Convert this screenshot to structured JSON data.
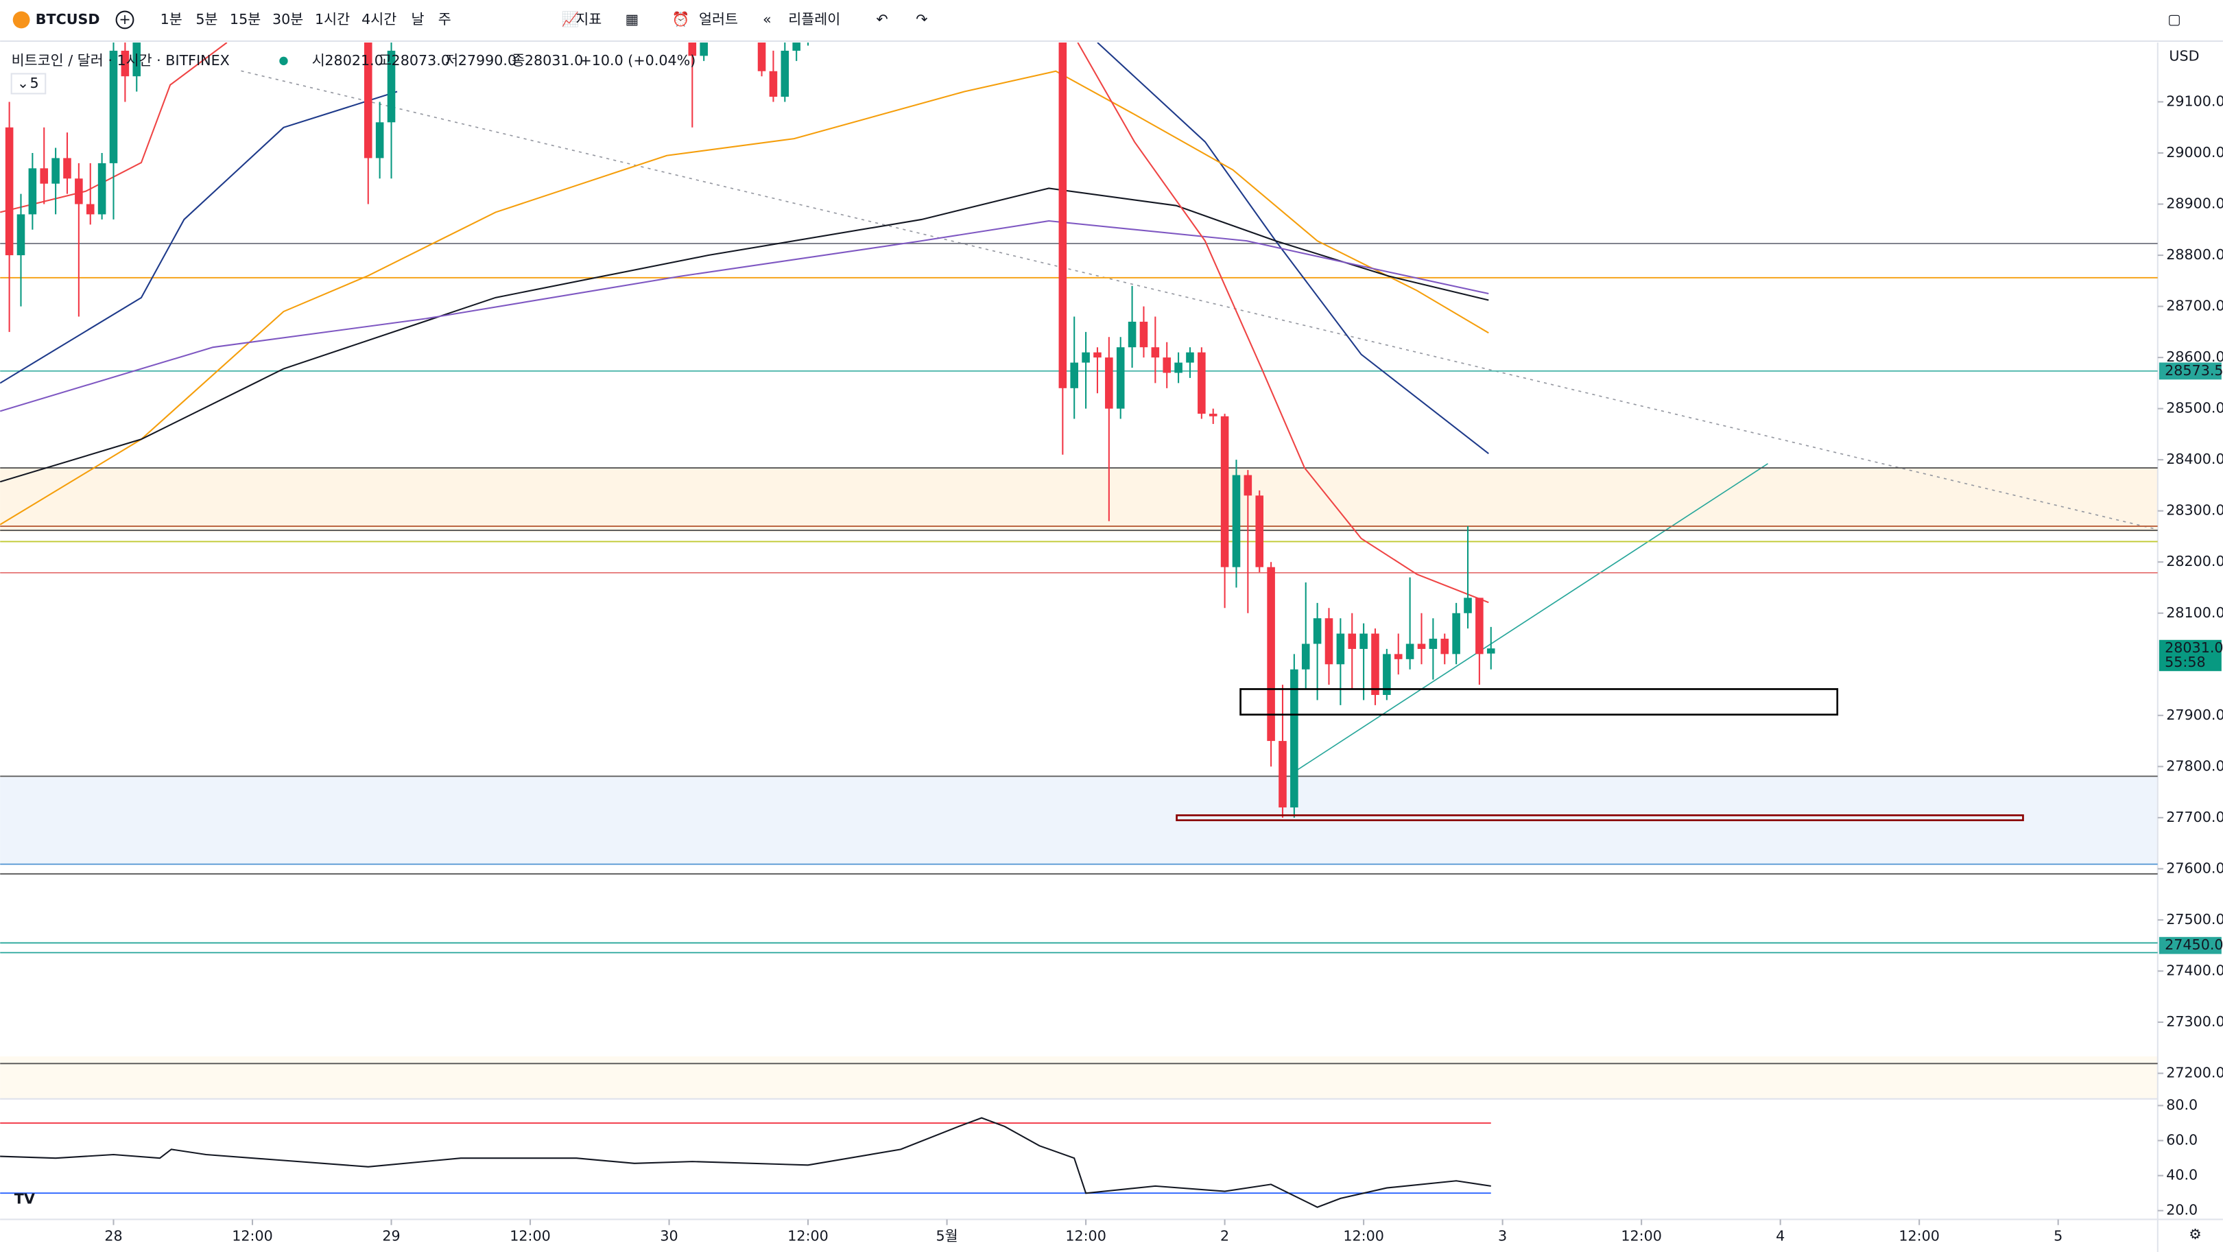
{
  "toolbar": {
    "symbol": "BTCUSD",
    "intervals": [
      "1분",
      "5분",
      "15분",
      "30분",
      "1시간",
      "4시간",
      "날",
      "주"
    ],
    "indicators": "지표",
    "alert": "얼러트",
    "replay": "리플레이"
  },
  "legend": {
    "title": "비트코인 / 달러 · 1시간 · BITFINEX",
    "o_label": "시",
    "o": "28021.0",
    "h_label": "고",
    "h": "28073.0",
    "l_label": "저",
    "l": "27990.0",
    "c_label": "종",
    "c": "28031.0",
    "change": "+10.0 (+0.04%)",
    "volume_len": "5"
  },
  "chart_data": {
    "type": "candlestick",
    "currency": "USD",
    "x": [
      -9,
      -8,
      -7,
      -6,
      -5,
      -4,
      -3,
      -2,
      -1,
      0,
      1,
      2,
      22,
      23,
      24,
      50,
      51,
      56,
      57,
      58,
      59,
      60,
      82,
      83,
      84,
      85,
      86,
      87,
      88,
      89,
      90,
      91,
      92,
      93,
      94,
      95,
      96,
      97,
      98,
      99,
      100,
      101,
      102,
      103,
      104,
      105,
      106,
      107,
      108,
      109,
      110,
      111,
      112,
      113,
      114,
      115,
      116,
      117,
      118,
      119
    ],
    "open": [
      29050,
      28800,
      28880,
      28970,
      28940,
      28990,
      28950,
      28900,
      28880,
      28980,
      29200,
      29150,
      29230,
      28990,
      29060,
      29240,
      29190,
      29230,
      29160,
      29110,
      29200,
      29230,
      29230,
      28540,
      28590,
      28610,
      28600,
      28500,
      28620,
      28670,
      28620,
      28600,
      28570,
      28590,
      28610,
      28490,
      28485,
      28190,
      28370,
      28330,
      28190,
      27850,
      27720,
      27990,
      28040,
      28090,
      28000,
      28060,
      28030,
      28060,
      27940,
      28020,
      28010,
      28040,
      28030,
      28050,
      28020,
      28100,
      28130,
      28021
    ],
    "high": [
      29100,
      28920,
      29000,
      29050,
      29010,
      29040,
      28980,
      28980,
      29000,
      29240,
      29250,
      29250,
      29250,
      29100,
      29240,
      29260,
      29240,
      29250,
      29200,
      29220,
      29240,
      29250,
      29250,
      28680,
      28650,
      28620,
      28640,
      28640,
      28740,
      28700,
      28680,
      28630,
      28610,
      28620,
      28620,
      28500,
      28490,
      28400,
      28380,
      28340,
      28200,
      27960,
      28020,
      28160,
      28120,
      28110,
      28090,
      28100,
      28080,
      28070,
      28030,
      28060,
      28170,
      28100,
      28090,
      28060,
      28120,
      28270,
      28130,
      28073
    ],
    "low": [
      28650,
      28700,
      28850,
      28900,
      28880,
      28920,
      28680,
      28860,
      28870,
      28870,
      29100,
      29120,
      28900,
      28950,
      28950,
      29050,
      29180,
      29150,
      29100,
      29100,
      29180,
      29210,
      28410,
      28480,
      28500,
      28530,
      28280,
      28480,
      28580,
      28600,
      28550,
      28540,
      28550,
      28560,
      28480,
      28470,
      28110,
      28150,
      28100,
      28180,
      27800,
      27700,
      27700,
      27950,
      27930,
      27960,
      27920,
      27950,
      27930,
      27920,
      27930,
      27980,
      27990,
      28000,
      27970,
      28000,
      28000,
      28070,
      27960,
      27990
    ],
    "close": [
      28800,
      28880,
      28970,
      28940,
      28990,
      28950,
      28900,
      28880,
      28980,
      29200,
      29150,
      29240,
      28990,
      29060,
      29200,
      29190,
      29230,
      29160,
      29110,
      29200,
      29230,
      29240,
      28540,
      28590,
      28610,
      28600,
      28500,
      28620,
      28670,
      28620,
      28600,
      28570,
      28590,
      28610,
      28490,
      28485,
      28190,
      28370,
      28330,
      28190,
      27850,
      27720,
      27990,
      28040,
      28090,
      28000,
      28060,
      28030,
      28060,
      27940,
      28020,
      28010,
      28040,
      28030,
      28050,
      28020,
      28100,
      28130,
      28020,
      28031
    ],
    "up_color": "#089981",
    "down_color": "#f23645",
    "lines": [
      {
        "color": "#1e3a8a",
        "x": [
          -9.8,
          2.4,
          6.1,
          14.7,
          24.5,
          40,
          85,
          94.3,
          100.4,
          107.8,
          118.8
        ],
        "values": [
          28550,
          28717,
          28870,
          29050,
          29120,
          null,
          29216,
          29022,
          28828,
          28606,
          28412
        ]
      },
      {
        "color": "#f59e0b",
        "x": [
          -9.8,
          2.4,
          14.7,
          22,
          33,
          47.8,
          58.8,
          73.5,
          81.4,
          88,
          96.7,
          104,
          112.6,
          118.8
        ],
        "values": [
          28273,
          28440,
          28690,
          28760,
          28884,
          28995,
          29028,
          29120,
          29160,
          29078,
          28967,
          28828,
          28731,
          28648
        ]
      },
      {
        "color": "#131722",
        "x": [
          -9.8,
          2.4,
          14.7,
          33,
          51.4,
          69.8,
          80.8,
          91.8,
          100.4,
          110.2,
          118.8
        ],
        "values": [
          28357,
          28440,
          28578,
          28717,
          28800,
          28870,
          28931,
          28897,
          28828,
          28759,
          28712
        ]
      },
      {
        "color": "#7e57c2",
        "x": [
          -9.8,
          8.6,
          27,
          49,
          69.8,
          80.8,
          97.9,
          110.2,
          118.8
        ],
        "values": [
          28495,
          28620,
          28676,
          28759,
          28828,
          28867,
          28828,
          28767,
          28725
        ]
      },
      {
        "color": "#ef4444",
        "x": [
          -9.8,
          -2.4,
          2.4,
          4.9,
          9.8,
          40,
          83.3,
          88.2,
          94.3,
          99.2,
          102.9,
          107.8,
          112.6,
          118.8
        ],
        "values": [
          28884,
          28925,
          28981,
          29133,
          29216,
          null,
          29216,
          29022,
          28828,
          28578,
          28384,
          28246,
          28176,
          28121
        ]
      }
    ],
    "levels": [
      {
        "value": 28823,
        "color": "#787b86"
      },
      {
        "value": 28756,
        "color": "#f59e0b"
      },
      {
        "value": 28573.5,
        "color": "#4db6ac"
      },
      {
        "value": 28384,
        "color": "#555"
      },
      {
        "value": 28270,
        "color": "#b85c38"
      },
      {
        "value": 28262,
        "color": "#555"
      },
      {
        "value": 28240,
        "color": "#c0ca33"
      },
      {
        "value": 28179,
        "color": "#e57373"
      },
      {
        "value": 27781,
        "color": "#555"
      },
      {
        "value": 27609,
        "color": "#5b9bd5"
      },
      {
        "value": 27590,
        "color": "#555"
      },
      {
        "value": 27455,
        "color": "#26a69a"
      },
      {
        "value": 27436,
        "color": "#26a69a"
      },
      {
        "value": 27219,
        "color": "#555"
      }
    ],
    "badges": [
      {
        "value": 28573.5,
        "label": "28573.5",
        "color": "#26a69a"
      },
      {
        "value": 27450,
        "label": "27450.0",
        "color": "#26a69a"
      },
      {
        "value": 28031,
        "label": "28031.0",
        "sub": "55:58",
        "color": "#089981"
      }
    ],
    "xlim": [
      -9.8,
      176.6
    ],
    "ylim": [
      27150,
      29216
    ],
    "xticks": [
      {
        "value": 0,
        "label": "28"
      },
      {
        "value": 12,
        "label": "12:00"
      },
      {
        "value": 24,
        "label": "29"
      },
      {
        "value": 36,
        "label": "12:00"
      },
      {
        "value": 48,
        "label": "30"
      },
      {
        "value": 60,
        "label": "12:00"
      },
      {
        "value": 72,
        "label": "5월"
      },
      {
        "value": 84,
        "label": "12:00"
      },
      {
        "value": 96,
        "label": "2"
      },
      {
        "value": 108,
        "label": "12:00"
      },
      {
        "value": 120,
        "label": "3"
      },
      {
        "value": 132,
        "label": "12:00"
      },
      {
        "value": 144,
        "label": "4"
      },
      {
        "value": 156,
        "label": "12:00"
      },
      {
        "value": 168,
        "label": "5"
      }
    ],
    "yticks": [
      {
        "value": 27200,
        "label": "27200.0"
      },
      {
        "value": 27300,
        "label": "27300.0"
      },
      {
        "value": 27400,
        "label": "27400.0"
      },
      {
        "value": 27500,
        "label": "27500.0"
      },
      {
        "value": 27600,
        "label": "27600.0"
      },
      {
        "value": 27700,
        "label": "27700.0"
      },
      {
        "value": 27800,
        "label": "27800.0"
      },
      {
        "value": 27900,
        "label": "27900.0"
      },
      {
        "value": 28100,
        "label": "28100.0"
      },
      {
        "value": 28200,
        "label": "28200.0"
      },
      {
        "value": 28300,
        "label": "28300.0"
      },
      {
        "value": 28400,
        "label": "28400.0"
      },
      {
        "value": 28500,
        "label": "28500.0"
      },
      {
        "value": 28600,
        "label": "28600.0"
      },
      {
        "value": 28700,
        "label": "28700.0"
      },
      {
        "value": 28800,
        "label": "28800.0"
      },
      {
        "value": 28900,
        "label": "28900.0"
      },
      {
        "value": 29000,
        "label": "29000.0"
      },
      {
        "value": 29100,
        "label": "29100.0"
      }
    ],
    "rsi": {
      "x": [
        -10,
        -5,
        0,
        4,
        5,
        8,
        14,
        22,
        30,
        40,
        45,
        50,
        60,
        68,
        73,
        75,
        77,
        80,
        83,
        84,
        90,
        96,
        100,
        104,
        106,
        110,
        116,
        119
      ],
      "values": [
        51,
        50,
        52,
        50,
        55,
        52,
        49,
        45,
        50,
        50,
        47,
        48,
        46,
        55,
        68,
        73,
        68,
        57,
        50,
        30,
        34,
        31,
        35,
        22,
        27,
        33,
        37,
        34
      ],
      "color": "#131722",
      "ylim": [
        15,
        83
      ],
      "yticks": [
        {
          "value": 20,
          "label": "20.0"
        },
        {
          "value": 40,
          "label": "40.0"
        },
        {
          "value": 60,
          "label": "60.0"
        },
        {
          "value": 80,
          "label": "80.0"
        }
      ],
      "levels": [
        {
          "value": 70,
          "color": "#f23645"
        },
        {
          "value": 30,
          "color": "#2962ff"
        }
      ]
    }
  }
}
